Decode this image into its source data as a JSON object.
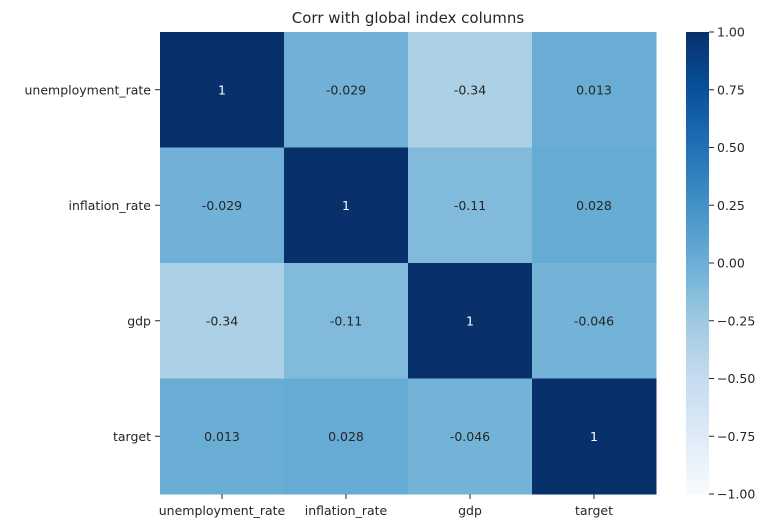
{
  "chart_data": {
    "type": "heatmap",
    "title": "Corr with global index columns",
    "xlabel": "",
    "ylabel": "",
    "rows": [
      "unemployment_rate",
      "inflation_rate",
      "gdp",
      "target"
    ],
    "columns": [
      "unemployment_rate",
      "inflation_rate",
      "gdp",
      "target"
    ],
    "values": [
      [
        1,
        -0.029,
        -0.34,
        0.013
      ],
      [
        -0.029,
        1,
        -0.11,
        0.028
      ],
      [
        -0.34,
        -0.11,
        1,
        -0.046
      ],
      [
        0.013,
        0.028,
        -0.046,
        1
      ]
    ],
    "annotations": [
      [
        "1",
        "-0.029",
        "-0.34",
        "0.013"
      ],
      [
        "-0.029",
        "1",
        "-0.11",
        "0.028"
      ],
      [
        "-0.34",
        "-0.11",
        "1",
        "-0.046"
      ],
      [
        "0.013",
        "0.028",
        "-0.046",
        "1"
      ]
    ],
    "colormap": "Blues",
    "colorbar": {
      "vmin": -1,
      "vmax": 1,
      "ticks": [
        "1.00",
        "0.75",
        "0.50",
        "0.25",
        "0.00",
        "−0.25",
        "−0.50",
        "−0.75",
        "−1.00"
      ],
      "tick_values": [
        1,
        0.75,
        0.5,
        0.25,
        0,
        -0.25,
        -0.5,
        -0.75,
        -1
      ]
    },
    "grid": false
  }
}
